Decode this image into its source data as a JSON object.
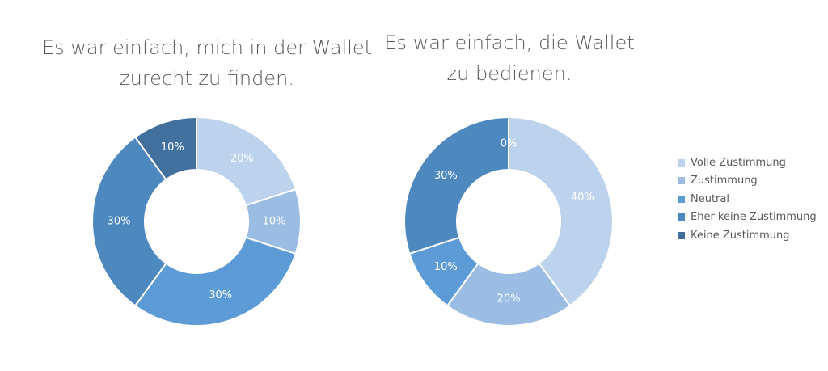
{
  "legend": [
    {
      "label": "Volle Zustimmung",
      "color": "#bdd2ec"
    },
    {
      "label": "Zustimmung",
      "color": "#9bbde3"
    },
    {
      "label": "Neutral",
      "color": "#5d9bd6"
    },
    {
      "label": "Eher keine Zustimmung",
      "color": "#4d88bf"
    },
    {
      "label": "Keine Zustimmung",
      "color": "#416f9e"
    }
  ],
  "chart_data": [
    {
      "type": "pie",
      "subtype": "donut",
      "title": "Es war einfach, mich in der Wallet zurecht zu finden.",
      "title_lines": [
        "Es war einfach, mich in der Wallet",
        "zurecht zu finden."
      ],
      "categories": [
        "Volle Zustimmung",
        "Zustimmung",
        "Neutral",
        "Eher keine Zustimmung",
        "Keine Zustimmung"
      ],
      "values": [
        20,
        10,
        30,
        30,
        10
      ],
      "labels": [
        "20%",
        "10%",
        "30%",
        "30%",
        "10%"
      ],
      "unit": "%"
    },
    {
      "type": "pie",
      "subtype": "donut",
      "title": "Es war einfach, die Wallet zu bedienen.",
      "title_lines": [
        "Es war einfach, die Wallet",
        "zu bedienen."
      ],
      "categories": [
        "Volle Zustimmung",
        "Zustimmung",
        "Neutral",
        "Eher keine Zustimmung",
        "Keine Zustimmung"
      ],
      "values": [
        40,
        20,
        10,
        30,
        0
      ],
      "labels": [
        "40%",
        "20%",
        "10%",
        "30%",
        "0%"
      ],
      "unit": "%"
    }
  ]
}
